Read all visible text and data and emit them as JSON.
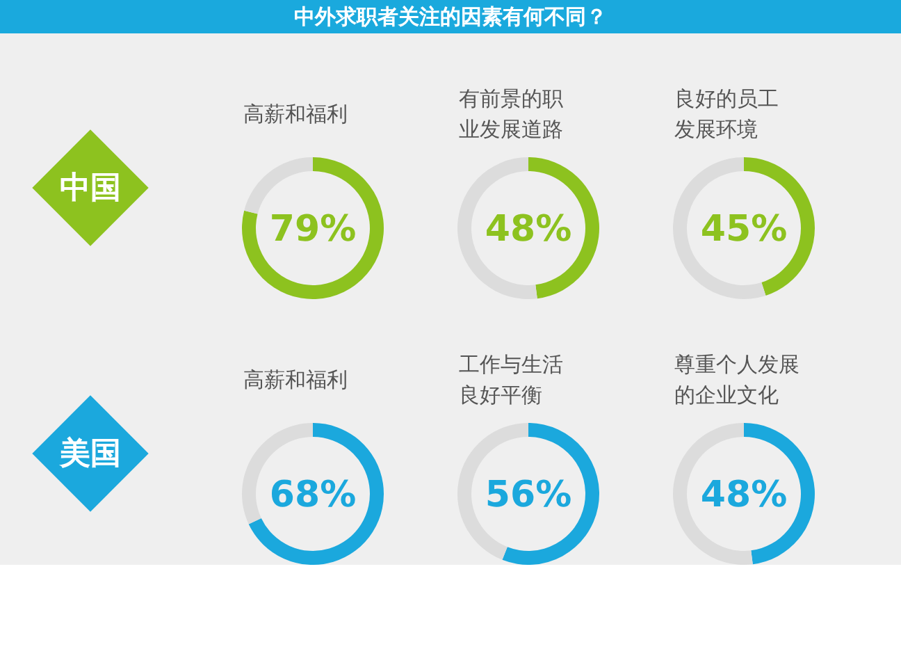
{
  "chart_data": [
    {
      "type": "other",
      "title": "中外求职者关注的因素有何不同？"
    },
    {
      "type": "other",
      "title": "中国",
      "colors": [
        "#8dc21f"
      ]
    },
    {
      "type": "donut",
      "title": "高薪和福利",
      "categories": [
        null,
        null
      ],
      "values": [
        79,
        21
      ],
      "colors": [
        "#8dc21f",
        "#dcdcdc"
      ],
      "value_labels": [
        "79%",
        null
      ]
    },
    {
      "type": "donut",
      "title": "有前景的职业发展道路",
      "categories": [
        null,
        null
      ],
      "values": [
        48,
        52
      ],
      "colors": [
        "#8dc21f",
        "#dcdcdc"
      ],
      "value_labels": [
        "48%",
        null
      ]
    },
    {
      "type": "donut",
      "title": "良好的员工发展环境",
      "categories": [
        null,
        null
      ],
      "values": [
        45,
        55
      ],
      "colors": [
        "#8dc21f",
        "#dcdcdc"
      ],
      "value_labels": [
        "45%",
        null
      ]
    },
    {
      "type": "other",
      "title": "美国",
      "colors": [
        "#1ba8dd"
      ]
    },
    {
      "type": "donut",
      "title": "高薪和福利",
      "categories": [
        null,
        null
      ],
      "values": [
        68,
        32
      ],
      "colors": [
        "#1ba8dd",
        "#dcdcdc"
      ],
      "value_labels": [
        "68%",
        null
      ]
    },
    {
      "type": "donut",
      "title": "工作与生活良好平衡",
      "categories": [
        null,
        null
      ],
      "values": [
        56,
        44
      ],
      "colors": [
        "#1ba8dd",
        "#dcdcdc"
      ],
      "value_labels": [
        "56%",
        null
      ]
    },
    {
      "type": "donut",
      "title": "尊重个人发展的企业文化",
      "categories": [
        null,
        null
      ],
      "values": [
        48,
        52
      ],
      "colors": [
        "#1ba8dd",
        "#dcdcdc"
      ],
      "value_labels": [
        "48%",
        null
      ]
    }
  ]
}
